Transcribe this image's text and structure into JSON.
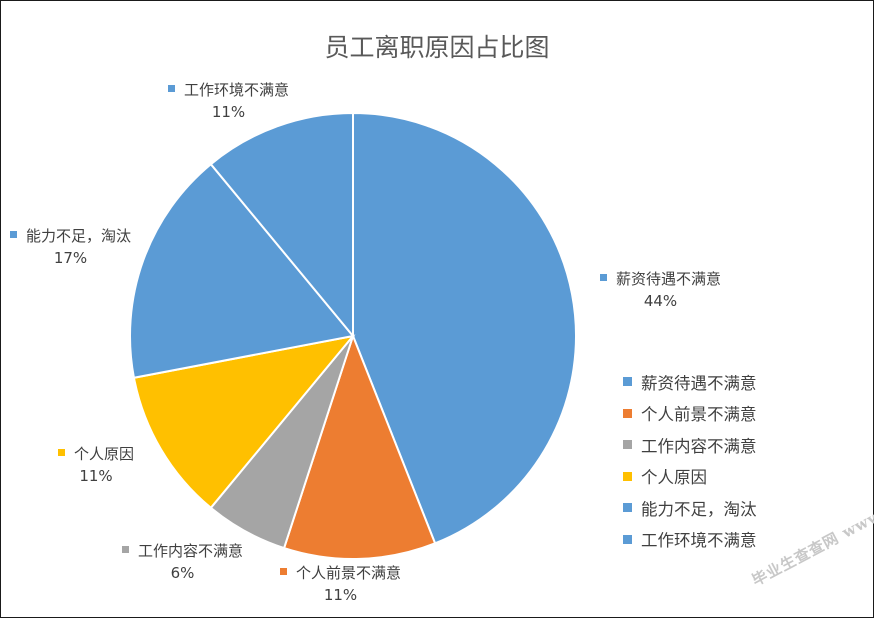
{
  "chart_data": {
    "type": "pie",
    "title": "员工离职原因占比图",
    "categories": [
      "薪资待遇不满意",
      "个人前景不满意",
      "工作内容不满意",
      "个人原因",
      "能力不足，淘汰",
      "工作环境不满意"
    ],
    "values": [
      44,
      11,
      6,
      11,
      17,
      11
    ],
    "value_labels": [
      "44%",
      "11%",
      "6%",
      "11%",
      "17%",
      "11%"
    ],
    "colors": [
      "#5B9BD5",
      "#ED7D31",
      "#A5A5A5",
      "#FFC000",
      "#5B9BD5",
      "#5B9BD5"
    ],
    "legend_position": "right"
  },
  "watermark": "毕业生查查网 www.sbvv.com"
}
